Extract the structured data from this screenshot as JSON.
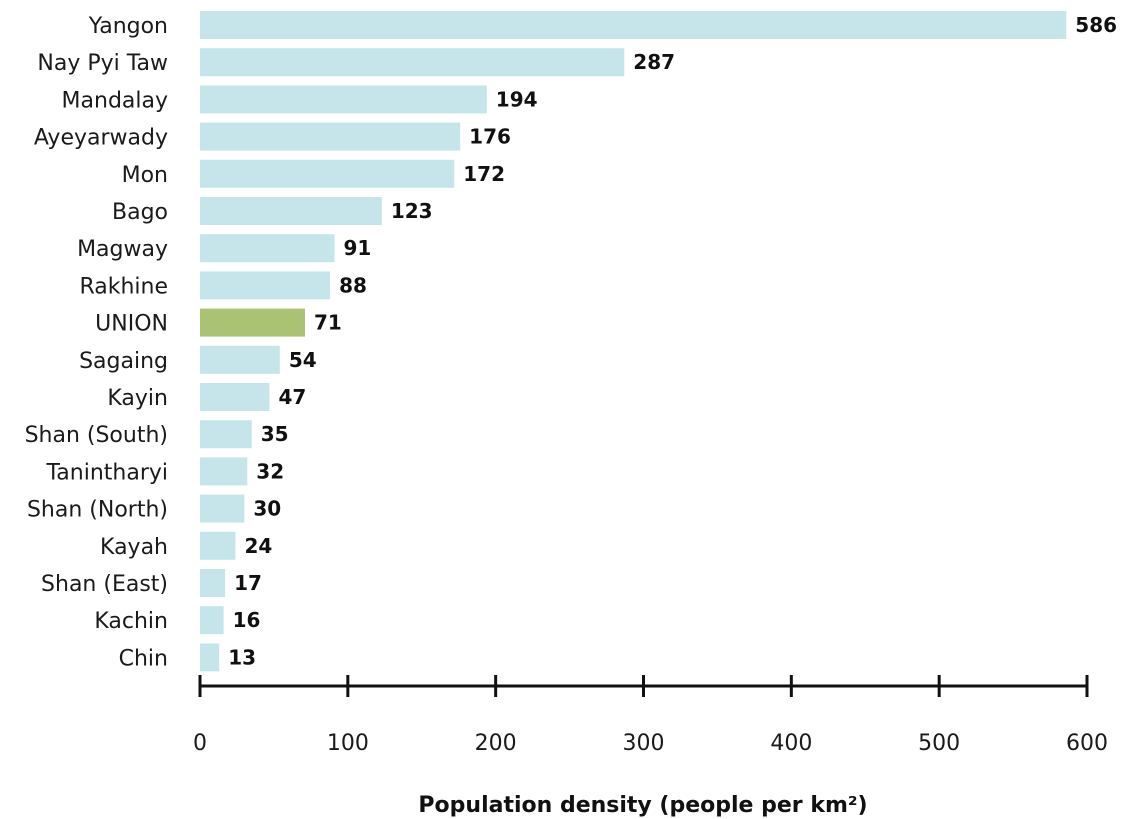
{
  "chart_data": {
    "type": "bar",
    "orientation": "horizontal",
    "categories": [
      "Yangon",
      "Nay Pyi Taw",
      "Mandalay",
      "Ayeyarwady",
      "Mon",
      "Bago",
      "Magway",
      "Rakhine",
      "UNION",
      "Sagaing",
      "Kayin",
      "Shan (South)",
      "Tanintharyi",
      "Shan (North)",
      "Kayah",
      "Shan (East)",
      "Kachin",
      "Chin"
    ],
    "values": [
      586,
      287,
      194,
      176,
      172,
      123,
      91,
      88,
      71,
      54,
      47,
      35,
      32,
      30,
      24,
      17,
      16,
      13
    ],
    "highlight": "UNION",
    "xlabel": "Population density (people per km²)",
    "xlim": [
      0,
      600
    ],
    "xticks": [
      0,
      100,
      200,
      300,
      400,
      500,
      600
    ],
    "grid": false,
    "legend": "none",
    "colors": {
      "bar": "#c6e5ea",
      "highlight": "#a9c274",
      "text": "#111111"
    }
  }
}
